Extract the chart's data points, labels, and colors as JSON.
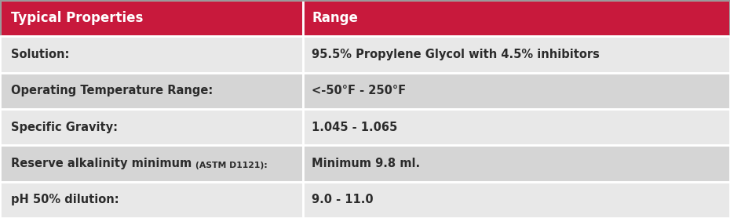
{
  "header": [
    "Typical Properties",
    "Range"
  ],
  "rows": [
    [
      "Solution:",
      "95.5% Propylene Glycol with 4.5% inhibitors"
    ],
    [
      "Operating Temperature Range:",
      "<-50°F - 250°F"
    ],
    [
      "Specific Gravity:",
      "1.045 - 1.065"
    ],
    [
      "Reserve alkalinity minimum (ASTM D1121):",
      "Minimum 9.8 ml."
    ],
    [
      "pH 50% dilution:",
      "9.0 - 11.0"
    ]
  ],
  "header_bg": "#C8193C",
  "header_text_color": "#FFFFFF",
  "row_bg_light": "#E8E8E8",
  "row_bg_dark": "#D5D5D5",
  "border_color": "#FFFFFF",
  "text_color": "#2B2B2B",
  "col_split": 0.415,
  "header_fontsize": 12,
  "row_fontsize": 10.5,
  "table_border_color": "#999999",
  "special_row3_main": "Reserve alkalinity minimum ",
  "special_row3_small": "(ASTM D1121):",
  "special_row3_small_fontsize": 7.8,
  "row_border_lw": 2.0,
  "outer_border_lw": 2.0
}
